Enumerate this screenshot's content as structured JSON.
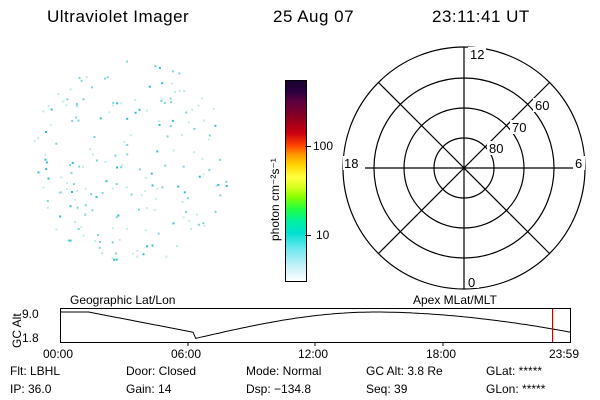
{
  "header": {
    "instrument": "Ultraviolet Imager",
    "date": "25 Aug 07",
    "time": "23:11:41 UT"
  },
  "colorbar": {
    "unit_label": "photon cm⁻²s⁻¹",
    "ticks": [
      "100",
      "10"
    ]
  },
  "polar_plot": {
    "mlt_labels": {
      "top": "12",
      "left": "18",
      "right": "6",
      "bottom": "0"
    },
    "lat_labels": [
      "60",
      "70",
      "80"
    ]
  },
  "orbit_plot": {
    "title_left": "Geographic Lat/Lon",
    "title_right": "Apex MLat/MLT",
    "axis_label": "GC Alt",
    "ymax": "9.0",
    "ymin": "1.8",
    "xticks": [
      "00:00",
      "06:00",
      "12:00",
      "18:00",
      "23:59"
    ],
    "current_time_fraction": 0.965
  },
  "status": {
    "row1": {
      "flt": "Flt: LBHL",
      "door": "Door: Closed",
      "mode": "Mode: Normal",
      "gcalt": "GC Alt: 3.8 Re",
      "glat": "GLat: *****"
    },
    "row2": {
      "ip": "IP: 36.0",
      "gain": "Gain: 14",
      "dsp": "Dsp: −134.8",
      "seq": "Seq: 39",
      "glon": "GLon: *****"
    }
  },
  "colors": {
    "speckle": "#7fd4d8",
    "orbit_marker": "#cc0000"
  }
}
